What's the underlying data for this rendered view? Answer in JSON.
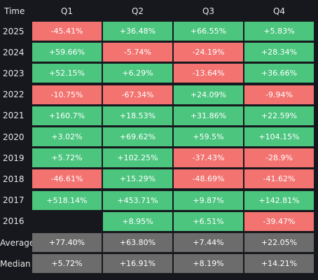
{
  "chart_data": {
    "type": "table",
    "corner_label": "Time",
    "columns": [
      "Q1",
      "Q2",
      "Q3",
      "Q4"
    ],
    "rows": [
      {
        "label": "2025",
        "cells": [
          "-45.41%",
          "+36.48%",
          "+66.55%",
          "+5.83%"
        ]
      },
      {
        "label": "2024",
        "cells": [
          "+59.66%",
          "-5.74%",
          "-24.19%",
          "+28.34%"
        ]
      },
      {
        "label": "2023",
        "cells": [
          "+52.15%",
          "+6.29%",
          "-13.64%",
          "+36.66%"
        ]
      },
      {
        "label": "2022",
        "cells": [
          "-10.75%",
          "-67.34%",
          "+24.09%",
          "-9.94%"
        ]
      },
      {
        "label": "2021",
        "cells": [
          "+160.7%",
          "+18.53%",
          "+31.86%",
          "+22.59%"
        ]
      },
      {
        "label": "2020",
        "cells": [
          "+3.02%",
          "+69.62%",
          "+59.5%",
          "+104.15%"
        ]
      },
      {
        "label": "2019",
        "cells": [
          "+5.72%",
          "+102.25%",
          "-37.43%",
          "-28.9%"
        ]
      },
      {
        "label": "2018",
        "cells": [
          "-46.61%",
          "+15.29%",
          "-48.69%",
          "-41.62%"
        ]
      },
      {
        "label": "2017",
        "cells": [
          "+518.14%",
          "+453.71%",
          "+9.87%",
          "+142.81%"
        ]
      },
      {
        "label": "2016",
        "cells": [
          "",
          "+8.95%",
          "+6.51%",
          "-39.47%"
        ]
      },
      {
        "label": "Average",
        "summary": true,
        "cells": [
          "+77.40%",
          "+63.80%",
          "+7.44%",
          "+22.05%"
        ]
      },
      {
        "label": "Median",
        "summary": true,
        "cells": [
          "+5.72%",
          "+16.91%",
          "+8.19%",
          "+14.21%"
        ]
      }
    ],
    "colors": {
      "positive": "#4cc57f",
      "negative": "#f27370",
      "summary": "#6c6c6c",
      "background": "#16181d"
    }
  }
}
